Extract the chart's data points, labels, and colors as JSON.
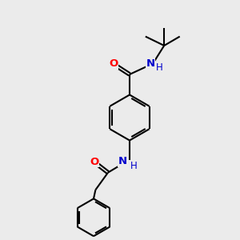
{
  "background_color": "#ebebeb",
  "bond_color": "#000000",
  "oxygen_color": "#ff0000",
  "nitrogen_color": "#0000cc",
  "line_width": 1.5,
  "figure_size": [
    3.0,
    3.0
  ],
  "dpi": 100,
  "xlim": [
    0,
    10
  ],
  "ylim": [
    0,
    10
  ]
}
